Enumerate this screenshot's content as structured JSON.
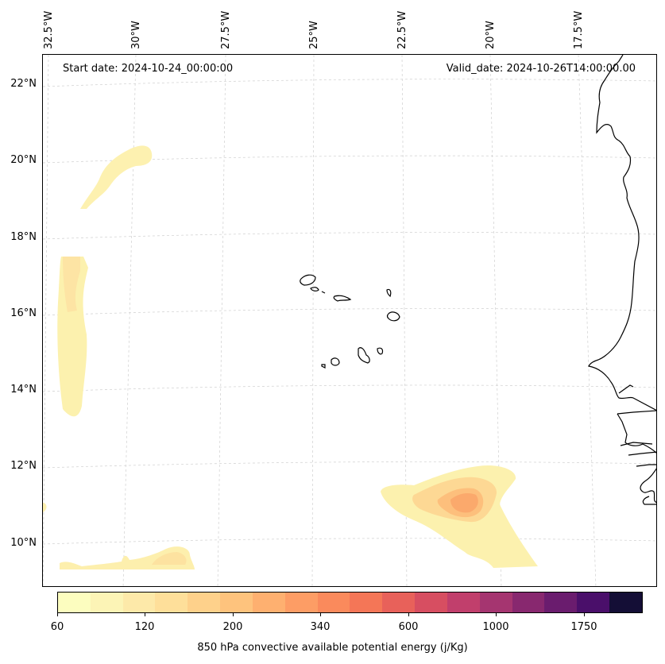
{
  "map": {
    "start_date": "Start date: 2024-10-24_00:00:00",
    "valid_date": "Valid_date: 2024-10-26T14:00:00.00",
    "lat_labels": [
      "22°N",
      "20°N",
      "18°N",
      "16°N",
      "14°N",
      "12°N",
      "10°N"
    ],
    "lon_labels": [
      "32.5°W",
      "30°W",
      "27.5°W",
      "25°W",
      "22.5°W",
      "20°W",
      "17.5°W"
    ],
    "variable": "850 hPa convective available potential energy",
    "gridlines": "dashed light grey"
  },
  "colorbar": {
    "label": "850 hPa convective available potential energy (j/Kg)",
    "tick_labels": [
      "60",
      "120",
      "200",
      "340",
      "600",
      "1000",
      "1750"
    ],
    "colors": [
      "#fcfdbf",
      "#fcf4b6",
      "#fde9a9",
      "#fedf9a",
      "#fed18b",
      "#fec37d",
      "#feb070",
      "#fd9d65",
      "#fa8a5c",
      "#f47657",
      "#e8615a",
      "#d74e61",
      "#c13f6c",
      "#a53570",
      "#88286f",
      "#6a1c6e",
      "#4a0f6a",
      "#140e36"
    ]
  }
}
